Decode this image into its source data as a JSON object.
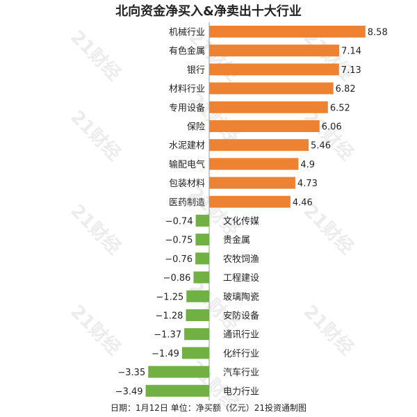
{
  "title": "北向资金净买入&净卖出十大行业",
  "footer": "日期：1月12日 单位：净买额（亿元）21投资通制图",
  "watermark": "21财经",
  "colors": {
    "buy": "#ee8233",
    "sell": "#71b043",
    "axis": "#999999",
    "text": "#222222"
  },
  "chart_data": {
    "type": "bar",
    "orientation": "horizontal",
    "title": "北向资金净买入&净卖出十大行业",
    "unit": "净买额（亿元）",
    "categories": [
      "机械行业",
      "有色金属",
      "银行",
      "材料行业",
      "专用设备",
      "保险",
      "水泥建材",
      "输配电气",
      "包装材料",
      "医药制造",
      "文化传媒",
      "贵金属",
      "农牧饲渔",
      "工程建设",
      "玻璃陶瓷",
      "安防设备",
      "通讯行业",
      "化纤行业",
      "汽车行业",
      "电力行业"
    ],
    "values": [
      8.58,
      7.14,
      7.13,
      6.82,
      6.52,
      6.06,
      5.46,
      4.9,
      4.73,
      4.46,
      -0.74,
      -0.75,
      -0.76,
      -0.86,
      -1.25,
      -1.28,
      -1.37,
      -1.49,
      -3.35,
      -3.49
    ],
    "value_labels": [
      "8.58",
      "7.14",
      "7.13",
      "6.82",
      "6.52",
      "6.06",
      "5.46",
      "4.9",
      "4.73",
      "4.46",
      "−0.74",
      "−0.75",
      "−0.76",
      "−0.86",
      "−1.25",
      "−1.28",
      "−1.37",
      "−1.49",
      "−3.35",
      "−3.49"
    ],
    "xlim": [
      -3.49,
      8.58
    ]
  }
}
